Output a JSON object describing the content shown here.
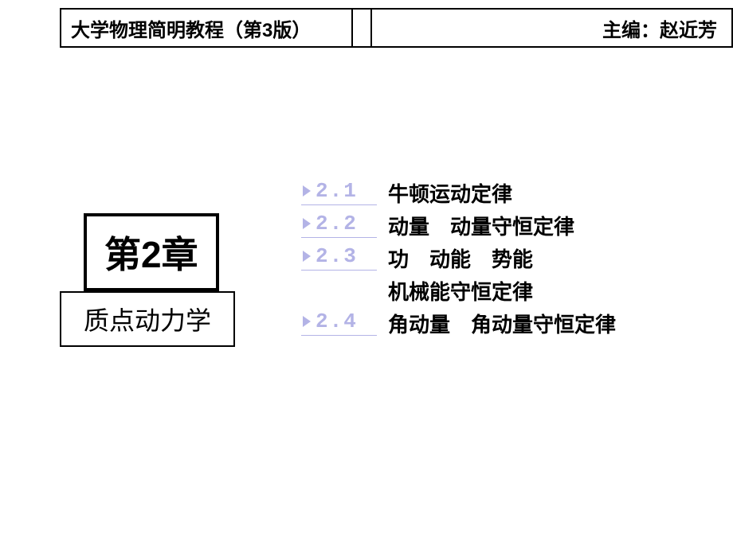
{
  "header": {
    "left": "大学物理简明教程（第3版）",
    "right": "主编：赵近芳"
  },
  "chapter": {
    "number": "第2章",
    "title": "质点动力学"
  },
  "toc": {
    "link_color": "#b3b3e6",
    "text_color": "#000000",
    "num_fontsize": 26,
    "text_fontsize": 26,
    "items": [
      {
        "num": "2.1",
        "text": "牛顿运动定律"
      },
      {
        "num": "2.2",
        "text": "动量　动量守恒定律"
      },
      {
        "num": "2.3",
        "text": "功　动能　势能",
        "text2": "机械能守恒定律"
      },
      {
        "num": "2.4",
        "text": "角动量　角动量守恒定律"
      }
    ]
  },
  "colors": {
    "background": "#ffffff",
    "border": "#000000",
    "link": "#b3b3e6"
  }
}
